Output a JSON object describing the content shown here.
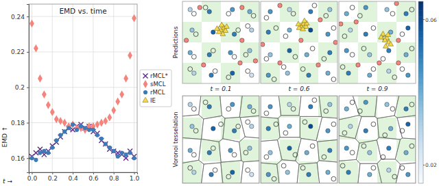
{
  "chart_data": [
    {
      "type": "scatter",
      "title": "EMD vs. time",
      "x_label": "t →",
      "y_label": "EMD ↑",
      "xlim": [
        -0.03,
        1.03
      ],
      "ylim": [
        0.152,
        0.247
      ],
      "xticks": [
        {
          "value": 0,
          "label": "0.0"
        },
        0.2,
        0.4,
        0.6,
        0.8,
        {
          "value": 1,
          "label": "1.0"
        }
      ],
      "yticks": [
        0.16,
        0.18,
        0.2,
        0.22,
        0.24
      ],
      "grid": true,
      "legend": "right",
      "series": [
        {
          "name": "rMCL*",
          "color": "#5b2a86",
          "marker": "x",
          "x": [
            0,
            0.04,
            0.08,
            0.12,
            0.16,
            0.2,
            0.24,
            0.28,
            0.32,
            0.36,
            0.4,
            0.44,
            0.48,
            0.52,
            0.56,
            0.6,
            0.64,
            0.68,
            0.72,
            0.76,
            0.8,
            0.84,
            0.88,
            0.92,
            0.96,
            1
          ],
          "values": [
            0.161,
            0.163,
            0.165,
            0.162,
            0.164,
            0.167,
            0.169,
            0.172,
            0.175,
            0.177,
            0.176,
            0.178,
            0.179,
            0.177,
            0.178,
            0.175,
            0.174,
            0.17,
            0.168,
            0.165,
            0.164,
            0.163,
            0.162,
            0.16,
            0.164,
            0.161
          ]
        },
        {
          "name": "sMCL",
          "color": "#f4847c",
          "marker": "diamond",
          "x": [
            0,
            0.04,
            0.08,
            0.12,
            0.16,
            0.2,
            0.24,
            0.28,
            0.32,
            0.36,
            0.4,
            0.44,
            0.48,
            0.52,
            0.56,
            0.6,
            0.64,
            0.68,
            0.72,
            0.76,
            0.8,
            0.84,
            0.88,
            0.92,
            0.96,
            1
          ],
          "values": [
            0.236,
            0.222,
            0.205,
            0.196,
            0.19,
            0.186,
            0.182,
            0.181,
            0.18,
            0.178,
            0.179,
            0.177,
            0.177,
            0.176,
            0.178,
            0.178,
            0.179,
            0.18,
            0.181,
            0.183,
            0.187,
            0.192,
            0.196,
            0.205,
            0.218,
            0.239
          ]
        },
        {
          "name": "rMCL",
          "color": "#3d7ab8",
          "marker": "circle",
          "x": [
            0,
            0.04,
            0.08,
            0.12,
            0.16,
            0.2,
            0.24,
            0.28,
            0.32,
            0.36,
            0.4,
            0.44,
            0.48,
            0.52,
            0.56,
            0.6,
            0.64,
            0.68,
            0.72,
            0.76,
            0.8,
            0.84,
            0.88,
            0.92,
            0.96,
            1
          ],
          "values": [
            0.16,
            0.159,
            0.163,
            0.164,
            0.163,
            0.166,
            0.17,
            0.173,
            0.175,
            0.177,
            0.179,
            0.176,
            0.178,
            0.177,
            0.176,
            0.176,
            0.173,
            0.171,
            0.168,
            0.166,
            0.164,
            0.161,
            0.163,
            0.162,
            0.163,
            0.16
          ]
        },
        {
          "name": "IE",
          "color": "#f5d94a",
          "marker": "triangle",
          "x": [],
          "values": []
        }
      ]
    },
    {
      "type": "scatter",
      "title": "t = 0.1",
      "xlim": [
        -1,
        1
      ],
      "ylim": [
        -1,
        1
      ],
      "tick_labels": false,
      "series": [
        {
          "marker": "circle",
          "x": [
            -0.8,
            -0.3,
            0.3,
            0.75,
            -0.75,
            -0.2,
            0.35,
            0.8,
            -0.8,
            -0.3,
            0.25,
            0.75,
            -0.7,
            -0.25,
            0.3,
            0.8
          ],
          "values": [
            0.8,
            0.75,
            0.8,
            0.75,
            0.3,
            0.25,
            0.2,
            0.3,
            -0.25,
            -0.3,
            -0.25,
            -0.2,
            -0.75,
            -0.8,
            -0.75,
            -0.8
          ],
          "score": [
            0.03,
            0.05,
            0.045,
            0.04,
            0.035,
            0.055,
            0.05,
            0.03,
            0.04,
            0.05,
            0.045,
            0.035,
            0.03,
            0.05,
            0.055,
            0.025
          ]
        },
        {
          "marker": "circle-open",
          "color": "#1a1a1a",
          "x": [
            -0.7,
            -0.4,
            0.2,
            0.85,
            -0.65,
            0,
            0.45,
            0.7,
            -0.7,
            -0.2,
            0.35,
            0.65,
            -0.8,
            -0.15,
            0.2,
            0.7
          ],
          "values": [
            0.7,
            0.85,
            0.7,
            0.65,
            0.2,
            0.35,
            0.3,
            0.4,
            -0.35,
            -0.2,
            -0.35,
            -0.3,
            -0.65,
            -0.7,
            -0.85,
            -0.7
          ]
        },
        {
          "marker": "circle",
          "color": "#f4847c",
          "x": [
            -0.55,
            0.55,
            -0.9,
            0.55,
            -0.45,
            0.5,
            0.9
          ],
          "values": [
            0.85,
            0.85,
            0.05,
            0.05,
            -0.55,
            -0.5,
            -0.45
          ]
        },
        {
          "marker": "triangle",
          "color": "#f5d94a",
          "x": [
            0,
            0.08,
            0.12,
            -0.05,
            0.05,
            0.15,
            -0.1,
            0.02
          ],
          "values": [
            0.3,
            0.35,
            0.28,
            0.25,
            0.2,
            0.38,
            0.33,
            0.42
          ]
        }
      ]
    },
    {
      "type": "scatter",
      "title": "t = 0.6",
      "xlim": [
        -1,
        1
      ],
      "ylim": [
        -1,
        1
      ],
      "tick_labels": false,
      "series": [
        {
          "marker": "circle",
          "x": [
            -0.75,
            -0.25,
            0.3,
            0.8,
            -0.8,
            -0.25,
            0.3,
            0.75,
            -0.75,
            -0.25,
            0.2,
            0.8,
            -0.8,
            -0.3,
            0.25,
            0.75
          ],
          "values": [
            0.75,
            0.8,
            0.75,
            0.8,
            0.25,
            0.3,
            0.3,
            0.2,
            -0.3,
            -0.2,
            -0.3,
            -0.25,
            -0.8,
            -0.75,
            -0.8,
            -0.75
          ],
          "score": [
            0.045,
            0.03,
            0.05,
            0.035,
            0.05,
            0.04,
            0.06,
            0.045,
            0.035,
            0.055,
            0.04,
            0.05,
            0.045,
            0.035,
            0.05,
            0.04
          ]
        },
        {
          "marker": "circle-open",
          "color": "#1a1a1a",
          "x": [
            -0.85,
            -0.15,
            0.4,
            0.7,
            -0.6,
            -0.35,
            0.15,
            0.9,
            -0.85,
            -0.1,
            0.35,
            0.65,
            -0.65,
            -0.4,
            0.1,
            0.9
          ],
          "values": [
            0.6,
            0.7,
            0.9,
            0.65,
            0.35,
            0.15,
            0.4,
            0.35,
            -0.4,
            -0.35,
            -0.15,
            -0.4,
            -0.9,
            -0.6,
            -0.65,
            -0.9
          ]
        },
        {
          "marker": "circle",
          "color": "#f4847c",
          "x": [
            -0.5,
            0.55,
            -0.95,
            0.05,
            -0.5,
            0.5,
            0.95
          ],
          "values": [
            0.9,
            0.55,
            -0.05,
            0.05,
            -0.5,
            -0.55,
            0
          ]
        },
        {
          "marker": "triangle",
          "color": "#f5d94a",
          "x": [
            0.05,
            0.12,
            0.18,
            0,
            0.1,
            0.2,
            -0.02,
            0.14
          ],
          "values": [
            0.4,
            0.45,
            0.38,
            0.35,
            0.32,
            0.46,
            0.44,
            0.52
          ]
        }
      ]
    },
    {
      "type": "scatter",
      "title": "t = 0.9",
      "xlim": [
        -1,
        1
      ],
      "ylim": [
        -1,
        1
      ],
      "tick_labels": false,
      "series": [
        {
          "marker": "circle",
          "x": [
            -0.8,
            -0.3,
            0.25,
            0.75,
            -0.7,
            -0.3,
            0.35,
            0.8,
            -0.8,
            -0.2,
            0.3,
            0.75,
            -0.75,
            -0.2,
            0.3,
            0.8
          ],
          "values": [
            0.7,
            0.85,
            0.8,
            0.7,
            0.3,
            0.2,
            0.25,
            0.35,
            -0.2,
            -0.3,
            -0.2,
            -0.3,
            -0.75,
            -0.8,
            -0.7,
            -0.8
          ],
          "score": [
            0.04,
            0.045,
            0.035,
            0.05,
            0.03,
            0.05,
            0.04,
            0.055,
            0.045,
            0.035,
            0.05,
            0.04,
            0.05,
            0.04,
            0.03,
            0.045
          ]
        },
        {
          "marker": "circle-open",
          "color": "#1a1a1a",
          "x": [
            -0.65,
            -0.45,
            0.4,
            0.9,
            -0.85,
            -0.1,
            0.2,
            0.65,
            -0.65,
            -0.35,
            0.15,
            0.9,
            -0.9,
            -0.1,
            0.45,
            0.65
          ],
          "values": [
            0.85,
            0.65,
            0.7,
            0.8,
            0.15,
            0.35,
            0.1,
            0.2,
            -0.3,
            -0.15,
            -0.4,
            -0.15,
            -0.6,
            -0.65,
            -0.85,
            -0.65
          ]
        },
        {
          "marker": "circle",
          "color": "#f4847c",
          "x": [
            -0.55,
            0.5,
            -0.95,
            0.55,
            -0.5,
            0.05,
            0.55
          ],
          "values": [
            0.5,
            0.95,
            0.45,
            0.05,
            -0.55,
            -0.5,
            -0.5
          ]
        },
        {
          "marker": "triangle",
          "color": "#f5d94a",
          "x": [
            0.15,
            0.25,
            0.3,
            0.2,
            0.35,
            0.1,
            0.28,
            0.22
          ],
          "values": [
            0.2,
            0.1,
            0,
            0.05,
            -0.05,
            0.12,
            0.18,
            -0.1
          ]
        }
      ]
    }
  ],
  "figure": {
    "row_labels": [
      "Predictions",
      "Voronoi tesselation"
    ],
    "colorbar": {
      "lim": [
        0.015,
        0.065
      ],
      "ticks": [
        0.02,
        0.06
      ]
    },
    "dense_regions": [
      [
        -1,
        -1,
        -0.5,
        -0.5
      ],
      [
        0,
        -1,
        0.5,
        -0.5
      ],
      [
        -0.5,
        -0.5,
        0,
        0
      ],
      [
        0.5,
        -0.5,
        1,
        0
      ],
      [
        -1,
        0,
        -0.5,
        0.5
      ],
      [
        0,
        0,
        0.5,
        0.5
      ],
      [
        -0.5,
        0.5,
        0,
        1
      ],
      [
        0.5,
        0.5,
        1,
        1
      ]
    ]
  }
}
